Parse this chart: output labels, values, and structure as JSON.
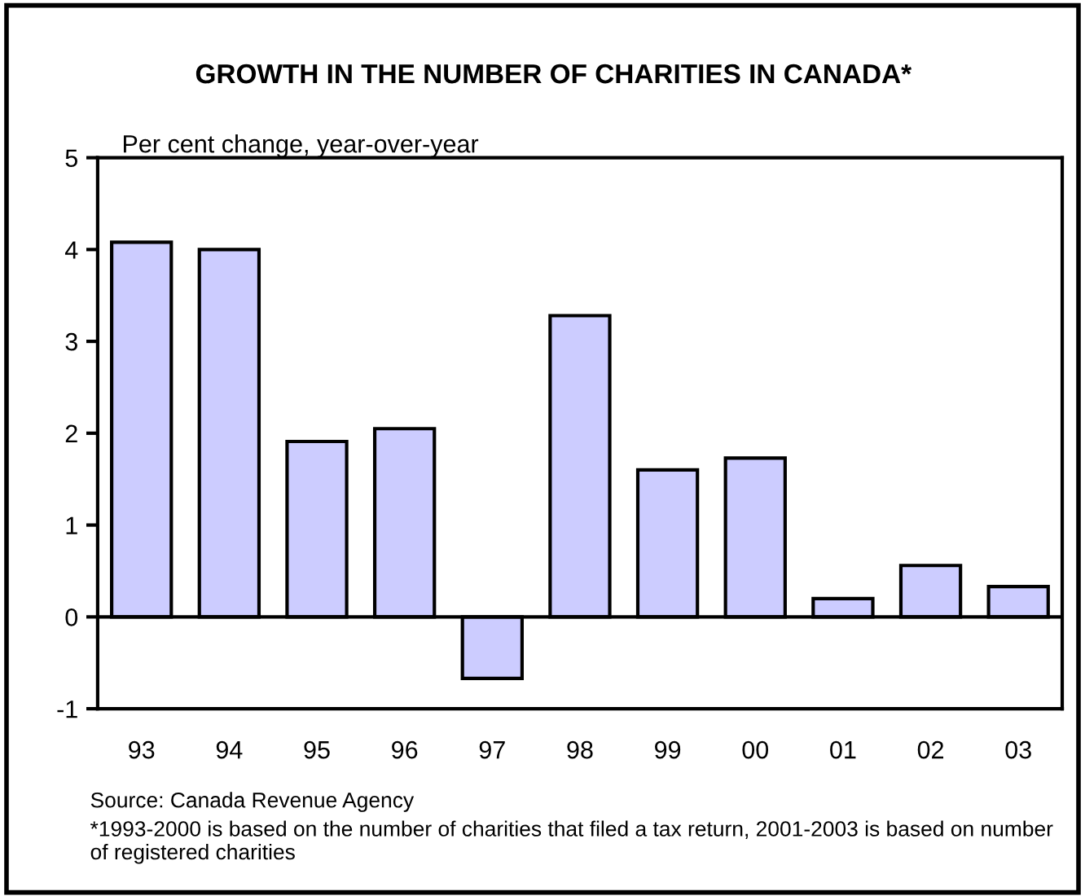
{
  "chart_data": {
    "type": "bar",
    "title": "GROWTH IN THE NUMBER OF CHARITIES IN CANADA*",
    "ylabel": "Per cent change, year-over-year",
    "categories": [
      "93",
      "94",
      "95",
      "96",
      "97",
      "98",
      "99",
      "00",
      "01",
      "02",
      "03"
    ],
    "values": [
      4.08,
      4.0,
      1.91,
      2.05,
      -0.67,
      3.28,
      1.6,
      1.73,
      0.2,
      0.56,
      0.33
    ],
    "color": "#ccccff",
    "ylim": [
      -1,
      5
    ],
    "yticks": [
      -1,
      0,
      1,
      2,
      3,
      4,
      5
    ],
    "annotations": [
      "Source: Canada Revenue Agency",
      "*1993-2000 is based on the number of charities that filed a tax return, 2001-2003 is based on number of registered charities"
    ]
  }
}
